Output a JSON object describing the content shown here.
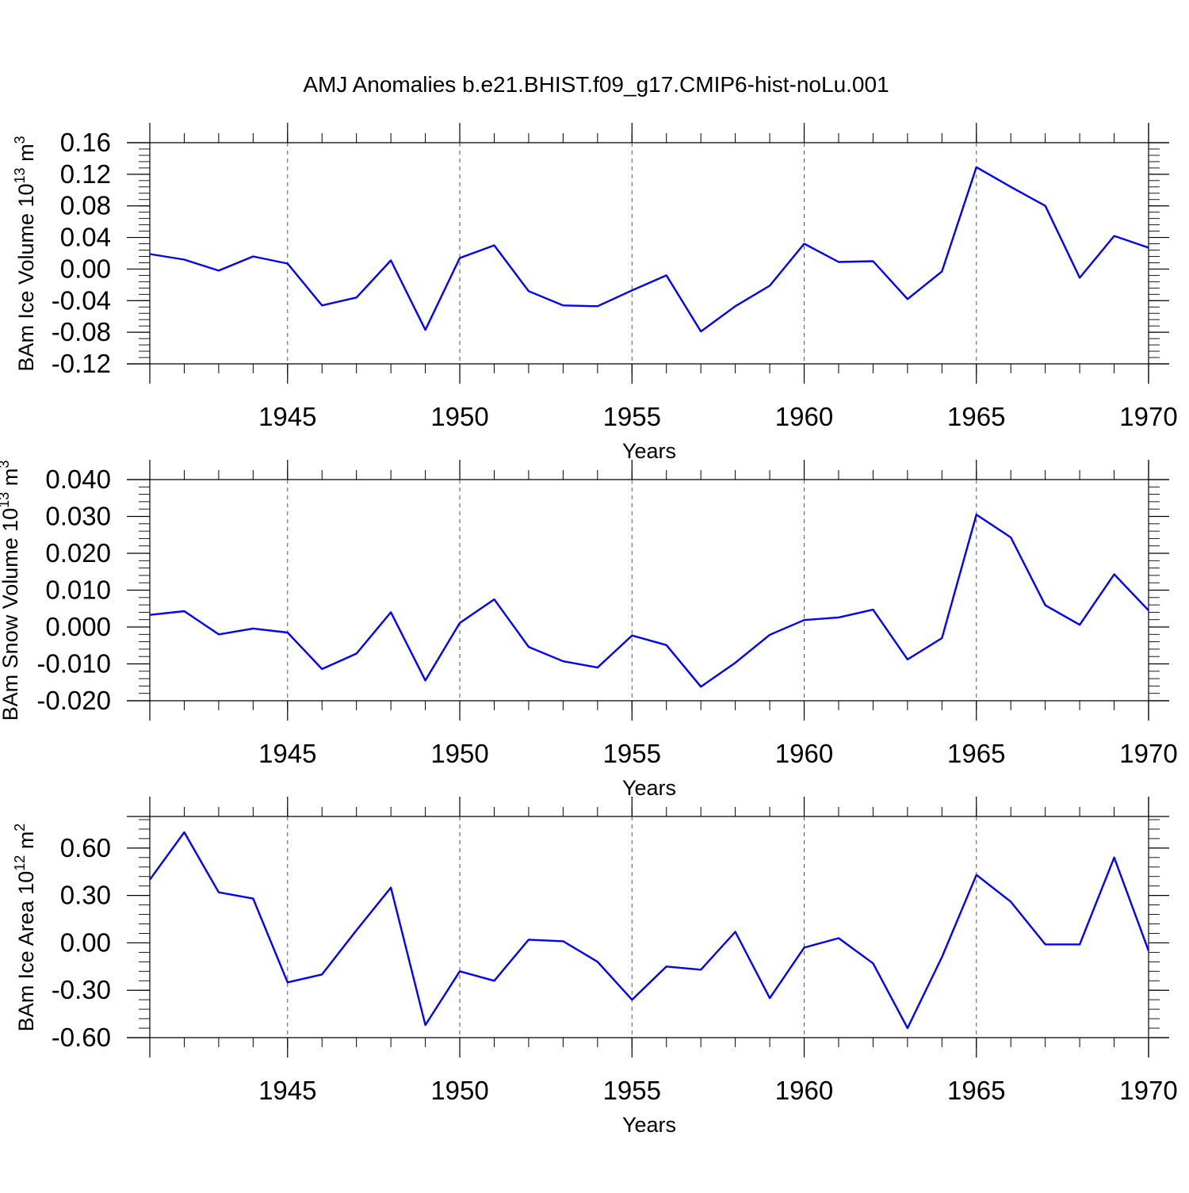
{
  "title": "AMJ Anomalies b.e21.BHIST.f09_g17.CMIP6-hist-noLu.001",
  "line_color": "#0000ff",
  "chart_data": [
    {
      "type": "line",
      "ylabel": "BAm Ice Volume 10",
      "ylabel_exp": "13",
      "ylabel_unit": "m",
      "ylabel_unit_exp": "3",
      "xlabel": "Years",
      "xlim": [
        1941,
        1970
      ],
      "ylim": [
        -0.12,
        0.16
      ],
      "yticks": [
        -0.12,
        -0.08,
        -0.04,
        0.0,
        0.04,
        0.08,
        0.12,
        0.16
      ],
      "ytick_labels": [
        "-0.12",
        "-0.08",
        "-0.04",
        "0.00",
        "0.04",
        "0.08",
        "0.12",
        "0.16"
      ],
      "xticks": [
        1945,
        1950,
        1955,
        1960,
        1965,
        1970
      ],
      "xtick_labels": [
        "1945",
        "1950",
        "1955",
        "1960",
        "1965",
        "1970"
      ],
      "x": [
        1941,
        1942,
        1943,
        1944,
        1945,
        1946,
        1947,
        1948,
        1949,
        1950,
        1951,
        1952,
        1953,
        1954,
        1955,
        1956,
        1957,
        1958,
        1959,
        1960,
        1961,
        1962,
        1963,
        1964,
        1965,
        1966,
        1967,
        1968,
        1969,
        1970
      ],
      "values": [
        0.019,
        0.012,
        -0.002,
        0.016,
        0.007,
        -0.046,
        -0.036,
        0.011,
        -0.077,
        0.014,
        0.03,
        -0.028,
        -0.046,
        -0.047,
        -0.027,
        -0.008,
        -0.079,
        -0.047,
        -0.021,
        0.032,
        0.009,
        0.01,
        -0.038,
        -0.003,
        0.129,
        0.104,
        0.08,
        -0.011,
        0.042,
        0.027
      ]
    },
    {
      "type": "line",
      "ylabel": "BAm Snow Volume 10",
      "ylabel_exp": "13",
      "ylabel_unit": "m",
      "ylabel_unit_exp": "3",
      "xlabel": "Years",
      "xlim": [
        1941,
        1970
      ],
      "ylim": [
        -0.02,
        0.04
      ],
      "yticks": [
        -0.02,
        -0.01,
        0.0,
        0.01,
        0.02,
        0.03,
        0.04
      ],
      "ytick_labels": [
        "-0.020",
        "-0.010",
        "0.000",
        "0.010",
        "0.020",
        "0.030",
        "0.040"
      ],
      "xticks": [
        1945,
        1950,
        1955,
        1960,
        1965,
        1970
      ],
      "xtick_labels": [
        "1945",
        "1950",
        "1955",
        "1960",
        "1965",
        "1970"
      ],
      "x": [
        1941,
        1942,
        1943,
        1944,
        1945,
        1946,
        1947,
        1948,
        1949,
        1950,
        1951,
        1952,
        1953,
        1954,
        1955,
        1956,
        1957,
        1958,
        1959,
        1960,
        1961,
        1962,
        1963,
        1964,
        1965,
        1966,
        1967,
        1968,
        1969,
        1970
      ],
      "values": [
        0.0033,
        0.0043,
        -0.002,
        -0.0004,
        -0.0015,
        -0.0114,
        -0.0072,
        0.004,
        -0.0145,
        0.0011,
        0.0075,
        -0.0054,
        -0.0093,
        -0.011,
        -0.0023,
        -0.0049,
        -0.0162,
        -0.0097,
        -0.0021,
        0.0019,
        0.0026,
        0.0047,
        -0.0088,
        -0.003,
        0.0305,
        0.0243,
        0.0059,
        0.0006,
        0.0143,
        0.0045
      ]
    },
    {
      "type": "line",
      "ylabel": "BAm Ice Area 10",
      "ylabel_exp": "12",
      "ylabel_unit": "m",
      "ylabel_unit_exp": "2",
      "xlabel": "Years",
      "xlim": [
        1941,
        1970
      ],
      "ylim": [
        -0.6,
        0.8
      ],
      "yticks": [
        -0.6,
        -0.3,
        0.0,
        0.3,
        0.6
      ],
      "ytick_labels": [
        "-0.60",
        "-0.30",
        "0.00",
        "0.30",
        "0.60"
      ],
      "xticks": [
        1945,
        1950,
        1955,
        1960,
        1965,
        1970
      ],
      "xtick_labels": [
        "1945",
        "1950",
        "1955",
        "1960",
        "1965",
        "1970"
      ],
      "x": [
        1941,
        1942,
        1943,
        1944,
        1945,
        1946,
        1947,
        1948,
        1949,
        1950,
        1951,
        1952,
        1953,
        1954,
        1955,
        1956,
        1957,
        1958,
        1959,
        1960,
        1961,
        1962,
        1963,
        1964,
        1965,
        1966,
        1967,
        1968,
        1969,
        1970
      ],
      "values": [
        0.4,
        0.7,
        0.32,
        0.28,
        -0.25,
        -0.2,
        0.08,
        0.35,
        -0.52,
        -0.18,
        -0.24,
        0.02,
        0.01,
        -0.12,
        -0.36,
        -0.15,
        -0.17,
        0.07,
        -0.35,
        -0.03,
        0.03,
        -0.13,
        -0.54,
        -0.09,
        0.43,
        0.26,
        -0.01,
        -0.01,
        0.54,
        -0.05
      ]
    }
  ]
}
